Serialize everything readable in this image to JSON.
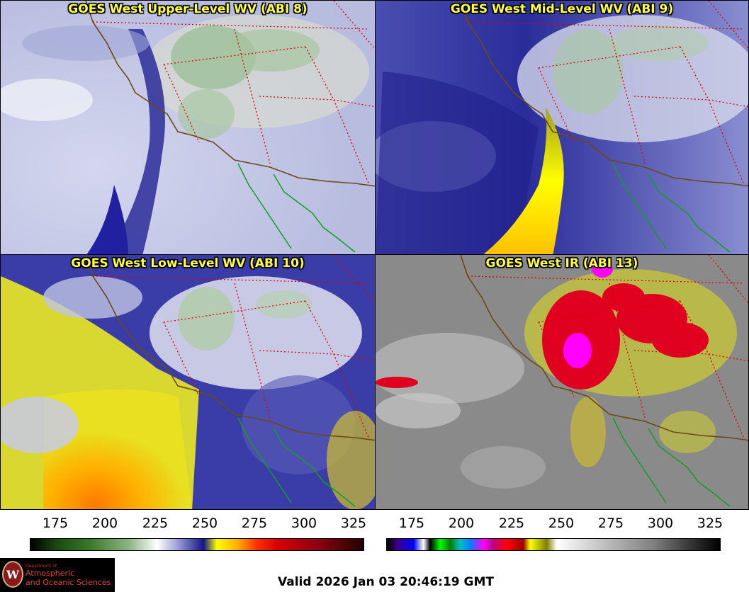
{
  "panels": [
    {
      "title": "GOES West Upper-Level WV (ABI 8)"
    },
    {
      "title": "GOES West Mid-Level WV (ABI 9)"
    },
    {
      "title": "GOES West Low-Level WV (ABI 10)"
    },
    {
      "title": "GOES West IR (ABI 13)"
    }
  ],
  "scales": {
    "left": {
      "ticks": [
        "175",
        "200",
        "225",
        "250",
        "275",
        "300",
        "325"
      ]
    },
    "right": {
      "ticks": [
        "175",
        "200",
        "225",
        "250",
        "275",
        "300",
        "325"
      ]
    }
  },
  "logo": {
    "dept": "Department of",
    "line1": "Atmospheric",
    "line2": "and Oceanic Sciences",
    "seal_letter": "W"
  },
  "valid_text": "Valid 2026 Jan 03 20:46:19 GMT",
  "colors": {
    "wv_deep_blue": "#10107a",
    "wv_lavender": "#c8cce8",
    "wv_green": "#88b088",
    "wv_yellow": "#ffff00",
    "wv_orange": "#ff8000",
    "ir_gray": "#8a8a8a",
    "ir_red": "#e00020",
    "ir_magenta": "#ff00ff",
    "coast_brown": "#6b4a12",
    "border_red": "#e00000",
    "mexico_green": "#10a020"
  }
}
